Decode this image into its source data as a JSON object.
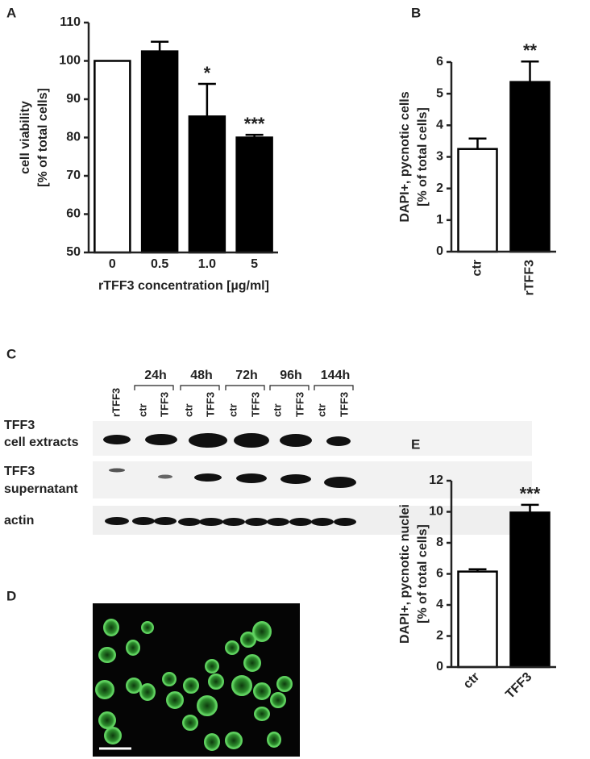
{
  "chart_data": [
    {
      "type": "bar",
      "panel": "A",
      "ylabel": [
        "cell viability",
        "[% of total cells]"
      ],
      "xlabel": "rTFF3 concentration [µg/ml]",
      "categories": [
        "0",
        "0.5",
        "1.0",
        "5"
      ],
      "values": [
        100,
        102.5,
        85.5,
        80
      ],
      "errors": [
        null,
        2.5,
        8.5,
        0.7
      ],
      "annotations": [
        null,
        null,
        "*",
        "***"
      ],
      "colors": [
        "#ffffff",
        "#000000",
        "#000000",
        "#000000"
      ],
      "ylim": [
        50,
        110
      ],
      "yticks": [
        50,
        60,
        70,
        80,
        90,
        100,
        110
      ]
    },
    {
      "type": "bar",
      "panel": "B",
      "ylabel": [
        "DAPI+, pycnotic cells",
        "[% of total cells]"
      ],
      "categories": [
        "ctr",
        "rTFF3"
      ],
      "values": [
        3.25,
        5.37
      ],
      "errors": [
        0.33,
        0.65
      ],
      "annotations": [
        null,
        "**"
      ],
      "colors": [
        "#ffffff",
        "#000000"
      ],
      "ylim": [
        0,
        6
      ],
      "yticks": [
        0,
        1,
        2,
        3,
        4,
        5,
        6
      ]
    },
    {
      "type": "bar",
      "panel": "E",
      "ylabel": [
        "DAPI+, pycnotic nuclei",
        "[% of total cells]"
      ],
      "categories": [
        "ctr",
        "TFF3"
      ],
      "values": [
        6.15,
        9.95
      ],
      "errors": [
        0.15,
        0.5
      ],
      "annotations": [
        null,
        "***"
      ],
      "colors": [
        "#ffffff",
        "#000000"
      ],
      "ylim": [
        0,
        12
      ],
      "yticks": [
        0,
        2,
        4,
        6,
        8,
        10,
        12
      ]
    }
  ],
  "blot": {
    "panel": "C",
    "timepoints": [
      "24h",
      "48h",
      "72h",
      "96h",
      "144h"
    ],
    "lanes": [
      "rTFF3",
      "ctr",
      "TFF3",
      "ctr",
      "TFF3",
      "ctr",
      "TFF3",
      "ctr",
      "TFF3",
      "ctr",
      "TFF3"
    ],
    "rows": [
      [
        "TFF3",
        "cell extracts"
      ],
      [
        "TFF3",
        "supernatant"
      ],
      [
        "actin"
      ]
    ]
  },
  "micrograph": {
    "panel": "D"
  }
}
